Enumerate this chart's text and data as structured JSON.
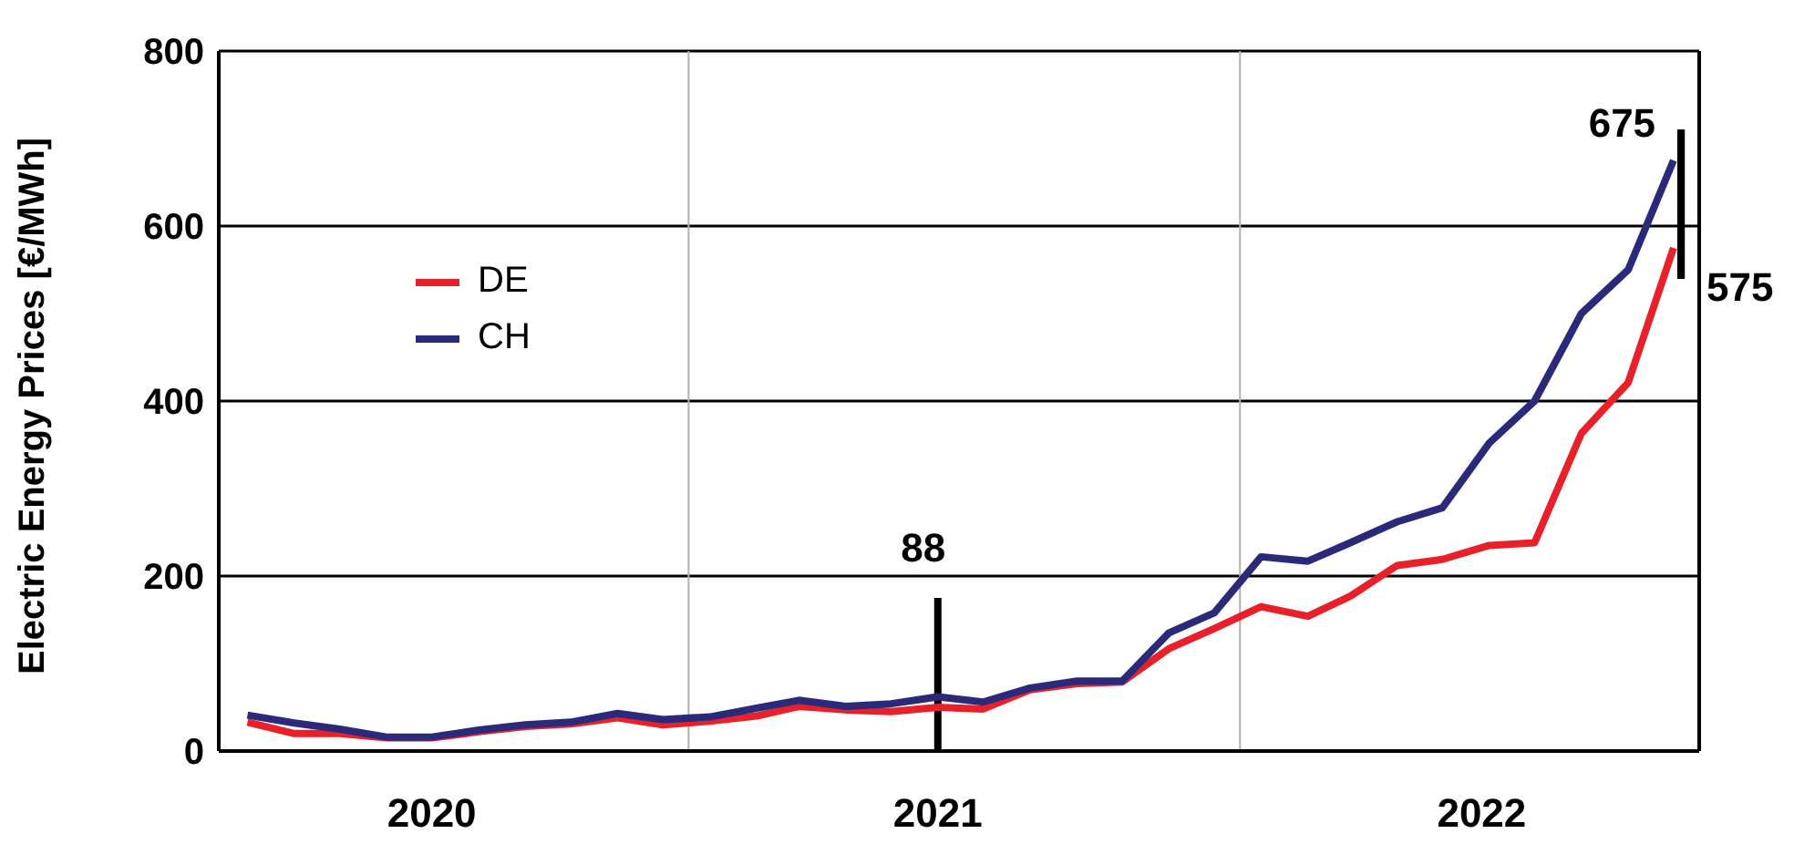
{
  "chart_data": {
    "type": "line",
    "ylabel": "Electric Energy Prices [€/MWh]",
    "x": [
      "2020-03-15",
      "2020-04-15",
      "2020-05-15",
      "2020-06-15",
      "2020-07-15",
      "2020-08-15",
      "2020-09-15",
      "2020-10-15",
      "2020-11-15",
      "2020-12-15",
      "2021-01-15",
      "2021-02-15",
      "2021-03-15",
      "2021-04-15",
      "2021-05-15",
      "2021-06-15",
      "2021-07-15",
      "2021-08-15",
      "2021-09-15",
      "2021-10-15",
      "2021-11-15",
      "2021-12-15",
      "2022-01-15",
      "2022-02-15",
      "2022-03-15",
      "2022-04-15",
      "2022-05-15",
      "2022-06-15",
      "2022-07-15",
      "2022-08-15",
      "2022-09-15",
      "2022-10-15"
    ],
    "series": [
      {
        "name": "DE",
        "color": "#e8202a",
        "values": [
          33,
          20,
          20,
          15,
          15,
          22,
          28,
          31,
          38,
          30,
          34,
          40,
          51,
          47,
          45,
          50,
          48,
          70,
          77,
          79,
          117,
          140,
          165,
          154,
          177,
          212,
          219,
          235,
          238,
          363,
          421,
          575
        ]
      },
      {
        "name": "CH",
        "color": "#2b2a7a",
        "values": [
          41,
          32,
          25,
          16,
          16,
          24,
          30,
          33,
          43,
          36,
          39,
          49,
          58,
          51,
          54,
          62,
          56,
          72,
          80,
          80,
          135,
          158,
          222,
          217,
          238,
          262,
          278,
          352,
          400,
          500,
          550,
          675
        ]
      }
    ],
    "xlim": [
      "2020-02-25",
      "2022-11-01"
    ],
    "xticks": [
      {
        "value": "2020-07-15",
        "label": "2020"
      },
      {
        "value": "2021-06-15",
        "label": "2021"
      },
      {
        "value": "2022-06-10",
        "label": "2022"
      }
    ],
    "ylim": [
      0,
      800
    ],
    "yticks": [
      0,
      200,
      400,
      600,
      800
    ],
    "ref_lines": [
      {
        "axis": "x",
        "value": "2021-01-01",
        "color": "#b0b0b0"
      },
      {
        "axis": "x",
        "value": "2022-01-01",
        "color": "#b0b0b0"
      },
      {
        "axis": "x",
        "value": "2021-06-15",
        "label": "88",
        "color": "#000000"
      }
    ],
    "annotations": [
      {
        "text": "675",
        "x": "2022-10-20",
        "y": 675
      },
      {
        "text": "575",
        "x": "2022-10-20",
        "y": 575
      }
    ],
    "grid": "y",
    "legend": "top left",
    "marker": "none",
    "line_style": "solid"
  }
}
